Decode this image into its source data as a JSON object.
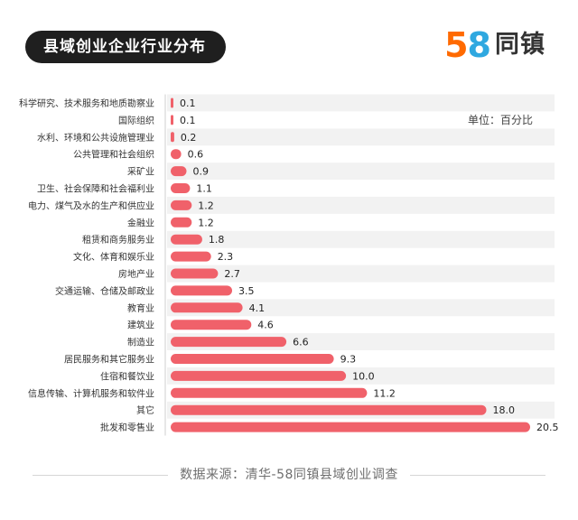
{
  "header": {
    "title": "县域创业企业行业分布",
    "logo_digits": [
      "5",
      "8"
    ],
    "logo_text": "同镇"
  },
  "unit_label": "单位：百分比",
  "source": "数据来源：清华-58同镇县域创业调查",
  "colors": {
    "bar": "#f0616a",
    "title_bg": "#1f1f1f",
    "logo_5": "#ff6a00",
    "logo_8": "#2fa8e0"
  },
  "chart_data": {
    "type": "bar",
    "orientation": "horizontal",
    "title": "县域创业企业行业分布",
    "xlabel": "",
    "ylabel": "",
    "categories": [
      "科学研究、技术服务和地质勘察业",
      "国际组织",
      "水利、环境和公共设施管理业",
      "公共管理和社会组织",
      "采矿业",
      "卫生、社会保障和社会福利业",
      "电力、煤气及水的生产和供应业",
      "金融业",
      "租赁和商务服务业",
      "文化、体育和娱乐业",
      "房地产业",
      "交通运输、仓储及邮政业",
      "教育业",
      "建筑业",
      "制造业",
      "居民服务和其它服务业",
      "住宿和餐饮业",
      "信息传输、计算机服务和软件业",
      "其它",
      "批发和零售业"
    ],
    "values": [
      0.1,
      0.1,
      0.2,
      0.6,
      0.9,
      1.1,
      1.2,
      1.2,
      1.8,
      2.3,
      2.7,
      3.5,
      4.1,
      4.6,
      6.6,
      9.3,
      10.0,
      11.2,
      18.0,
      20.5
    ],
    "value_labels": [
      "0.1",
      "0.1",
      "0.2",
      "0.6",
      "0.9",
      "1.1",
      "1.2",
      "1.2",
      "1.8",
      "2.3",
      "2.7",
      "3.5",
      "4.1",
      "4.6",
      "6.6",
      "9.3",
      "10.0",
      "11.2",
      "18.0",
      "20.5"
    ],
    "xlim": [
      0,
      20.5
    ],
    "grid": false,
    "row_banding": true
  }
}
